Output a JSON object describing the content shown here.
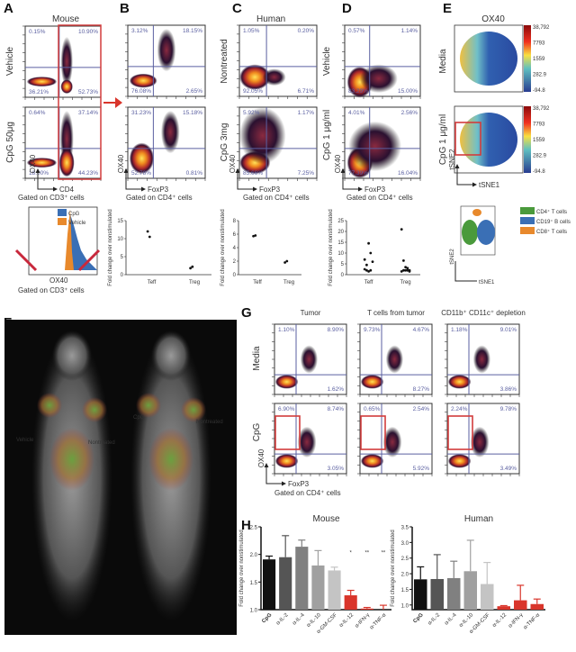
{
  "panels": {
    "A": {
      "label": "A",
      "title": "Mouse",
      "rows": [
        "Vehicle",
        "CpG 50μg"
      ],
      "yaxis": "OX40",
      "xaxis": "CD4",
      "gate": "Gated on CD3⁺ cells",
      "quadrants": [
        [
          "0.15%",
          "10.90%",
          "36.21%",
          "52.73%"
        ],
        [
          "0.64%",
          "37.14%",
          "18.00%",
          "44.23%"
        ]
      ],
      "histogram": {
        "legend": [
          "CpG",
          "Vehicle"
        ],
        "colors": [
          "#3a6fb5",
          "#e8892c"
        ],
        "xaxis": "OX40",
        "gate": "Gated on CD3⁺ cells",
        "markers": [
          "T",
          "T"
        ]
      }
    },
    "B": {
      "label": "B",
      "yaxis": "OX40",
      "xaxis": "FoxP3",
      "gate": "Gated on CD4⁺ cells",
      "quadrants": [
        [
          "3.12%",
          "18.15%",
          "76.08%",
          "2.65%"
        ],
        [
          "31.23%",
          "15.18%",
          "52.78%",
          "0.81%"
        ]
      ]
    },
    "C": {
      "label": "C",
      "title": "Human",
      "rows": [
        "Nontreated",
        "CpG 3mg"
      ],
      "yaxis": "OX40",
      "xaxis": "FoxP3",
      "gate": "Gated on CD4⁺ cells",
      "quadrants": [
        [
          "1.05%",
          "0.20%",
          "92.05%",
          "6.71%"
        ],
        [
          "5.92%",
          "1.17%",
          "85.66%",
          "7.25%"
        ]
      ]
    },
    "D": {
      "label": "D",
      "rows": [
        "Vehicle",
        "CpG 1 μg/ml"
      ],
      "yaxis": "OX40",
      "xaxis": "FoxP3",
      "gate": "Gated on CD4⁺ cells",
      "quadrants": [
        [
          "0.57%",
          "1.14%",
          "83.29%",
          "15.00%"
        ],
        [
          "4.01%",
          "2.56%",
          "77.39%",
          "16.04%"
        ]
      ]
    },
    "E": {
      "label": "E",
      "title": "OX40",
      "rows": [
        "Media",
        "CpG 1 μg/ml"
      ],
      "yaxis": "tSNE2",
      "xaxis": "tSNE1",
      "colorbar": [
        "38,792",
        "7793",
        "1559",
        "282.9",
        "-94.8"
      ],
      "legend": [
        {
          "label": "CD4⁺ T cells",
          "color": "#4a9a3c"
        },
        {
          "label": "CD19⁺ B cells",
          "color": "#3a6fb5"
        },
        {
          "label": "CD8⁺ T cells",
          "color": "#e8892c"
        }
      ]
    },
    "F": {
      "label": "F",
      "annotations": [
        "Vehicle",
        "Nontreated",
        "CpG",
        "Nontreated"
      ]
    },
    "G": {
      "label": "G",
      "columns": [
        "Tumor",
        "T cells from tumor",
        "CD11b⁺ CD11c⁺ depletion"
      ],
      "rows": [
        "Media",
        "CpG"
      ],
      "yaxis": "OX40",
      "xaxis": "FoxP3",
      "gate": "Gated on CD4⁺ cells",
      "quadrants": [
        [
          [
            "1.10%",
            "8.90%",
            "",
            "1.62%"
          ],
          [
            "9.73%",
            "4.67%",
            "",
            "8.27%"
          ],
          " "
        ],
        []
      ],
      "quad_media": [
        [
          "1.10%",
          "8.90%",
          "1.62%"
        ],
        [
          "9.73%",
          "4.67%",
          "8.27%"
        ],
        [
          "1.18%",
          "9.01%",
          "3.86%"
        ]
      ],
      "quad_cpg": [
        [
          "6.90%",
          "8.74%",
          "3.05%"
        ],
        [
          "0.65%",
          "2.54%",
          "5.92%"
        ],
        [
          "2.24%",
          "9.78%",
          "3.49%"
        ]
      ]
    },
    "H": {
      "label": "H"
    }
  },
  "chart_data": [
    {
      "type": "scatter",
      "panel": "A-bottom",
      "ylabel": "Fold change over nonstimulated",
      "categories": [
        "Teff",
        "Treg"
      ],
      "ylim": [
        0,
        15
      ],
      "yticks": [
        0,
        5,
        10,
        15
      ],
      "points": [
        [
          12,
          10.5
        ],
        [
          1.8,
          2.2
        ]
      ]
    },
    {
      "type": "scatter",
      "panel": "C-bottom",
      "ylabel": "Fold change over nonstimulated",
      "categories": [
        "Teff",
        "Treg"
      ],
      "ylim": [
        0,
        8
      ],
      "yticks": [
        0,
        2,
        4,
        6,
        8
      ],
      "points": [
        [
          5.7,
          5.8
        ],
        [
          1.8,
          2.0
        ]
      ]
    },
    {
      "type": "scatter",
      "panel": "D-bottom",
      "ylabel": "Fold change over nonstimulated",
      "categories": [
        "Teff",
        "Treg"
      ],
      "ylim": [
        0,
        25
      ],
      "yticks": [
        0,
        5,
        10,
        15,
        20,
        25
      ],
      "points": [
        [
          2.5,
          2,
          14.5,
          10,
          6,
          7,
          4.5,
          1.5,
          2
        ],
        [
          21,
          6.5,
          3.5,
          3,
          2,
          1.5,
          2,
          2,
          2,
          1.5
        ]
      ]
    },
    {
      "type": "bar",
      "title": "Mouse",
      "ylabel": "Fold change over nonstimulated",
      "ylim": [
        1.0,
        2.5
      ],
      "yticks": [
        1.0,
        1.5,
        2.0,
        2.5
      ],
      "categories": [
        "CpG",
        "α-IL-2",
        "α-IL-4",
        "α-IL-10",
        "α-GM-CSF",
        "α-IL-12",
        "α-IFN-γ",
        "α-TNF-α"
      ],
      "values": [
        1.91,
        1.95,
        2.14,
        1.8,
        1.71,
        1.26,
        1.02,
        1.0
      ],
      "error_upper": [
        1.97,
        2.34,
        2.26,
        2.07,
        1.77,
        1.35,
        1.04,
        1.08
      ],
      "significance": [
        "",
        "",
        "",
        "",
        "",
        "*",
        "**",
        "**"
      ],
      "colors": [
        "#111111",
        "#555555",
        "#808080",
        "#a0a0a0",
        "#c4c4c4",
        "#d9352b",
        "#d9352b",
        "#d9352b"
      ]
    },
    {
      "type": "bar",
      "title": "Human",
      "ylabel": "Fold change over nonstimulated",
      "ylim": [
        0.85,
        3.5
      ],
      "yticks": [
        1.0,
        1.5,
        2.0,
        2.5,
        3.0,
        3.5
      ],
      "categories": [
        "CpG",
        "α-IL-2",
        "α-IL-4",
        "α-IL-10",
        "α-GM-CSF",
        "α-IL-12",
        "α-IFN-γ",
        "α-TNF-α"
      ],
      "values": [
        1.82,
        1.83,
        1.86,
        2.08,
        1.67,
        0.96,
        1.15,
        1.03
      ],
      "error_upper": [
        2.22,
        2.61,
        2.4,
        3.07,
        2.36,
        0.98,
        1.63,
        1.19
      ],
      "colors": [
        "#111111",
        "#555555",
        "#808080",
        "#a0a0a0",
        "#c4c4c4",
        "#d9352b",
        "#d9352b",
        "#d9352b"
      ]
    }
  ]
}
